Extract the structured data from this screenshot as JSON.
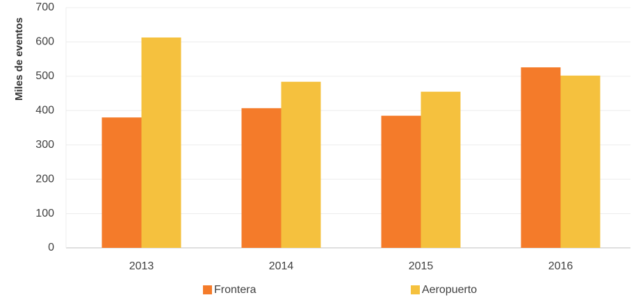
{
  "chart_data": {
    "type": "bar",
    "y_label": "Miles de eventos",
    "categories": [
      "2013",
      "2014",
      "2015",
      "2016"
    ],
    "series": [
      {
        "name": "Frontera",
        "color": "#f47b2a",
        "values": [
          380,
          407,
          385,
          526
        ]
      },
      {
        "name": "Aeropuerto",
        "color": "#f5c13e",
        "values": [
          613,
          484,
          455,
          502
        ]
      }
    ],
    "ylim": [
      0,
      700
    ],
    "yticks": [
      0,
      100,
      200,
      300,
      400,
      500,
      600,
      700
    ],
    "grid": true,
    "legend": "bottom"
  }
}
